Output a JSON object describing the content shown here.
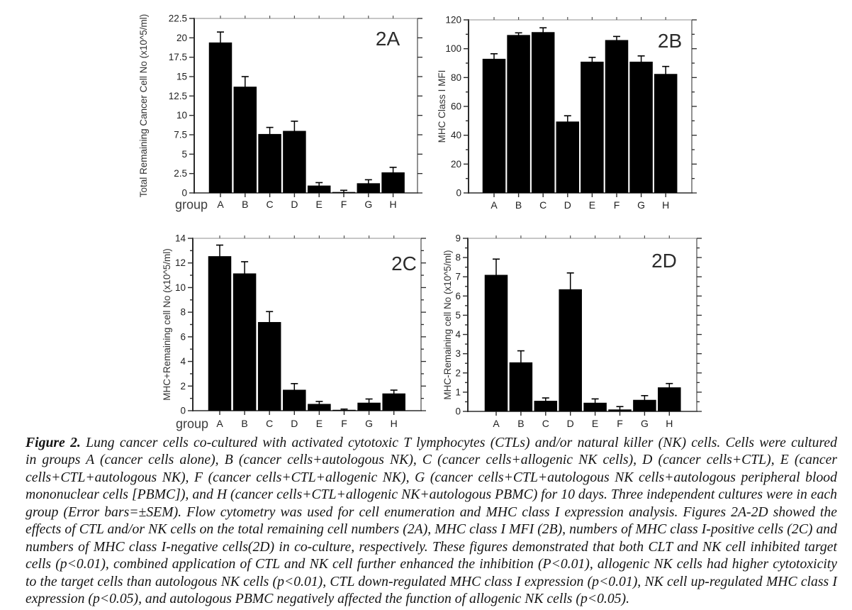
{
  "page": {
    "background": "#ffffff",
    "kind": "scientific-figure"
  },
  "colors": {
    "bar": "#000000",
    "axis": "#2b2b2b",
    "tick": "#2b2b2b",
    "tick_label": "#1f1f1f",
    "axis_title": "#333333",
    "panel_label": "#2c2c2c",
    "group_label": "#3d3d3d",
    "top_frame": "#8f8f8f",
    "caption_text": "#121212"
  },
  "chart_data": [
    {
      "id": "2A",
      "type": "bar",
      "panel_label": "2A",
      "ylabel": "Total Remaining Cancer Cell No (x10^5/ml)",
      "xlabel": "group",
      "categories": [
        "A",
        "B",
        "C",
        "D",
        "E",
        "F",
        "G",
        "H"
      ],
      "values": [
        19.4,
        13.7,
        7.6,
        8.0,
        0.95,
        0.12,
        1.25,
        2.65
      ],
      "errors": [
        1.35,
        1.3,
        0.85,
        1.25,
        0.38,
        0.22,
        0.45,
        0.65
      ],
      "ylim": [
        0,
        22.5
      ],
      "ytick_major": 2.5,
      "ytick_minor": null,
      "grid": false,
      "legend": null
    },
    {
      "id": "2B",
      "type": "bar",
      "panel_label": "2B",
      "ylabel": "MHC Class I MFI",
      "xlabel": null,
      "categories": [
        "A",
        "B",
        "C",
        "D",
        "E",
        "F",
        "G",
        "H"
      ],
      "values": [
        93,
        109.5,
        111.5,
        49.5,
        91,
        106,
        91,
        82.5
      ],
      "errors": [
        3.5,
        1.5,
        3.0,
        4.0,
        3.0,
        2.5,
        4.0,
        5.2
      ],
      "ylim": [
        0,
        120
      ],
      "ytick_major": 20,
      "ytick_minor": 10,
      "grid": false,
      "legend": null
    },
    {
      "id": "2C",
      "type": "bar",
      "panel_label": "2C",
      "ylabel": "MHC+Remaining cell No (x10^5/ml)",
      "xlabel": "group",
      "categories": [
        "A",
        "B",
        "C",
        "D",
        "E",
        "F",
        "G",
        "H"
      ],
      "values": [
        12.55,
        11.15,
        7.2,
        1.7,
        0.55,
        0.07,
        0.65,
        1.4
      ],
      "errors": [
        0.9,
        0.95,
        0.85,
        0.5,
        0.2,
        0.06,
        0.3,
        0.27
      ],
      "ylim": [
        0,
        14
      ],
      "ytick_major": 2,
      "ytick_minor": 1,
      "grid": false,
      "legend": null
    },
    {
      "id": "2D",
      "type": "bar",
      "panel_label": "2D",
      "ylabel": "MHC-Remaining cell No (x10^5/ml)",
      "xlabel": null,
      "categories": [
        "A",
        "B",
        "C",
        "D",
        "E",
        "F",
        "G",
        "H"
      ],
      "values": [
        7.1,
        2.55,
        0.55,
        6.35,
        0.45,
        0.1,
        0.6,
        1.25
      ],
      "errors": [
        0.82,
        0.6,
        0.15,
        0.85,
        0.2,
        0.15,
        0.22,
        0.2
      ],
      "ylim": [
        0,
        9
      ],
      "ytick_major": 1,
      "ytick_minor": 0.5,
      "grid": false,
      "legend": null
    }
  ],
  "caption": {
    "lead": "Figure 2.",
    "lines": [
      " Lung cancer cells co-cultured with activated cytotoxic T lymphocytes (CTLs) and/or natural killer (NK) cells. Cells were cultured",
      "in groups A (cancer cells alone), B (cancer cells+autologous NK), C (cancer cells+allogenic NK cells), D (cancer cells+CTL), E (cancer",
      "cells+CTL+autologous NK), F (cancer cells+CTL+allogenic NK), G (cancer cells+CTL+autologous NK cells+autologous peripheral blood",
      "mononuclear cells [PBMC]), and H (cancer cells+CTL+allogenic NK+autologous PBMC) for 10 days. Three independent cultures were in each",
      "group (Error bars=±SEM). Flow cytometry was used for cell enumeration and MHC class I expression analysis. Figures 2A-2D showed the",
      "effects of CTL and/or NK cells on the total remaining cell numbers (2A), MHC class I MFI (2B), numbers of MHC class I-positive cells (2C) and",
      "numbers of MHC class I-negative cells(2D) in co-culture, respectively. These figures demonstrated that both CLT and NK cell inhibited target",
      "cells (p<0.01), combined application of CTL and NK cell further enhanced the inhibition (P<0.01), allogenic NK cells had higher cytotoxicity",
      "to the target cells than autologous NK cells (p<0.01), CTL down-regulated MHC class I expression (p<0.01), NK cell up-regulated MHC class I",
      "expression (p<0.05), and autologous PBMC negatively affected the function of allogenic NK cells (p<0.05)."
    ]
  }
}
